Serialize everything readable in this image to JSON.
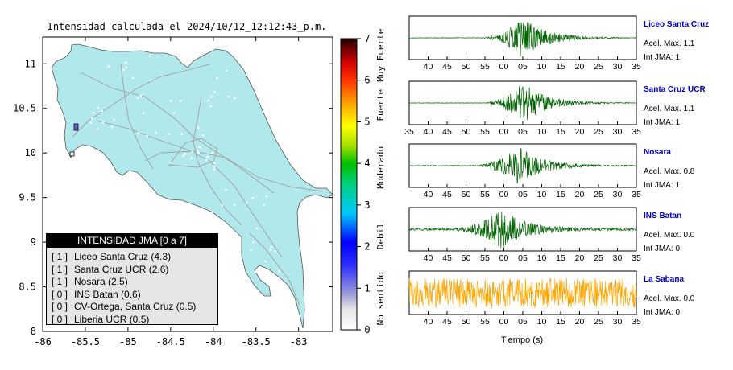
{
  "chart_data": [
    {
      "type": "map",
      "title": "Intensidad calculada el 2024/10/12_12:12:43_p.m.",
      "x_ticks": [
        "-86",
        "-85.5",
        "-85",
        "-84.5",
        "-84",
        "-83.5",
        "-83"
      ],
      "y_ticks": [
        "8",
        "8.5",
        "9",
        "9.5",
        "10",
        "10.5",
        "11"
      ],
      "xlim": [
        -86,
        -82.6
      ],
      "ylim": [
        8,
        11.3
      ],
      "colorbar": {
        "ticks": [
          "0",
          "1",
          "2",
          "3",
          "4",
          "5",
          "6",
          "7"
        ],
        "range": [
          0,
          7
        ],
        "labels": [
          "No sentido",
          "Debil",
          "Moderado",
          "Fuerte",
          "Muy Fuerte"
        ],
        "colors": [
          "#ffffff",
          "#8080c0",
          "#0000ff",
          "#00d0ff",
          "#00c000",
          "#ffff00",
          "#ff9900",
          "#ff0000",
          "#000000"
        ]
      },
      "land_color": "#b0e8ec",
      "highlighted_cells": [
        {
          "lon": -85.65,
          "lat": 10.28,
          "intensity": 1
        },
        {
          "lon": -85.68,
          "lat": 9.98,
          "intensity": 0
        }
      ],
      "legend": {
        "title": "INTENSIDAD JMA [0 a 7]",
        "entries": [
          {
            "level": "[ 1 ]",
            "label": "Liceo Santa Cruz (4.3)"
          },
          {
            "level": "[ 1 ]",
            "label": "Santa Cruz UCR (2.6)"
          },
          {
            "level": "[ 1 ]",
            "label": "Nosara (2.5)"
          },
          {
            "level": "[ 0 ]",
            "label": "INS Batan (0.6)"
          },
          {
            "level": "[ 0 ]",
            "label": "CV-Ortega, Santa Cruz (0.5)"
          },
          {
            "level": "[ 0 ]",
            "label": "Liberia UCR (0.5)"
          }
        ]
      }
    },
    {
      "type": "line",
      "xlabel": "Tiempo (s)",
      "x_tick_labels": [
        "35",
        "40",
        "45",
        "50",
        "55",
        "00",
        "05",
        "10",
        "15",
        "20",
        "25",
        "30",
        "35"
      ],
      "traces": [
        {
          "name": "Liceo Santa Cruz",
          "accel_label": "Acel. Max. 1.1",
          "int_label": "Int JMA: 1",
          "color": "#006400",
          "onset": 18.5,
          "peak": 30,
          "amp": 1.0,
          "noise": 0.01,
          "show_first_tick": false
        },
        {
          "name": "Santa Cruz UCR",
          "accel_label": "Acel. Max. 1.1",
          "int_label": "Int JMA: 1",
          "color": "#006400",
          "onset": 18.5,
          "peak": 30,
          "amp": 1.0,
          "noise": 0.01,
          "show_first_tick": true
        },
        {
          "name": "Nosara",
          "accel_label": "Acel. Max. 0.8",
          "int_label": "Int JMA: 1",
          "color": "#006400",
          "onset": 16,
          "peak": 29,
          "amp": 0.95,
          "noise": 0.02,
          "show_first_tick": false
        },
        {
          "name": "INS Batan",
          "accel_label": "Acel. Max. 0.0",
          "int_label": "Int JMA: 0",
          "color": "#006400",
          "onset": 10,
          "peak": 24.5,
          "amp": 0.9,
          "noise": 0.06,
          "show_first_tick": false
        },
        {
          "name": "La Sabana",
          "accel_label": "Acel. Max. 0.0",
          "int_label": "Int JMA: 0",
          "color": "#ffa500",
          "onset": 0,
          "peak": 0,
          "amp": 0.0,
          "noise": 0.7,
          "show_first_tick": false
        }
      ]
    }
  ]
}
